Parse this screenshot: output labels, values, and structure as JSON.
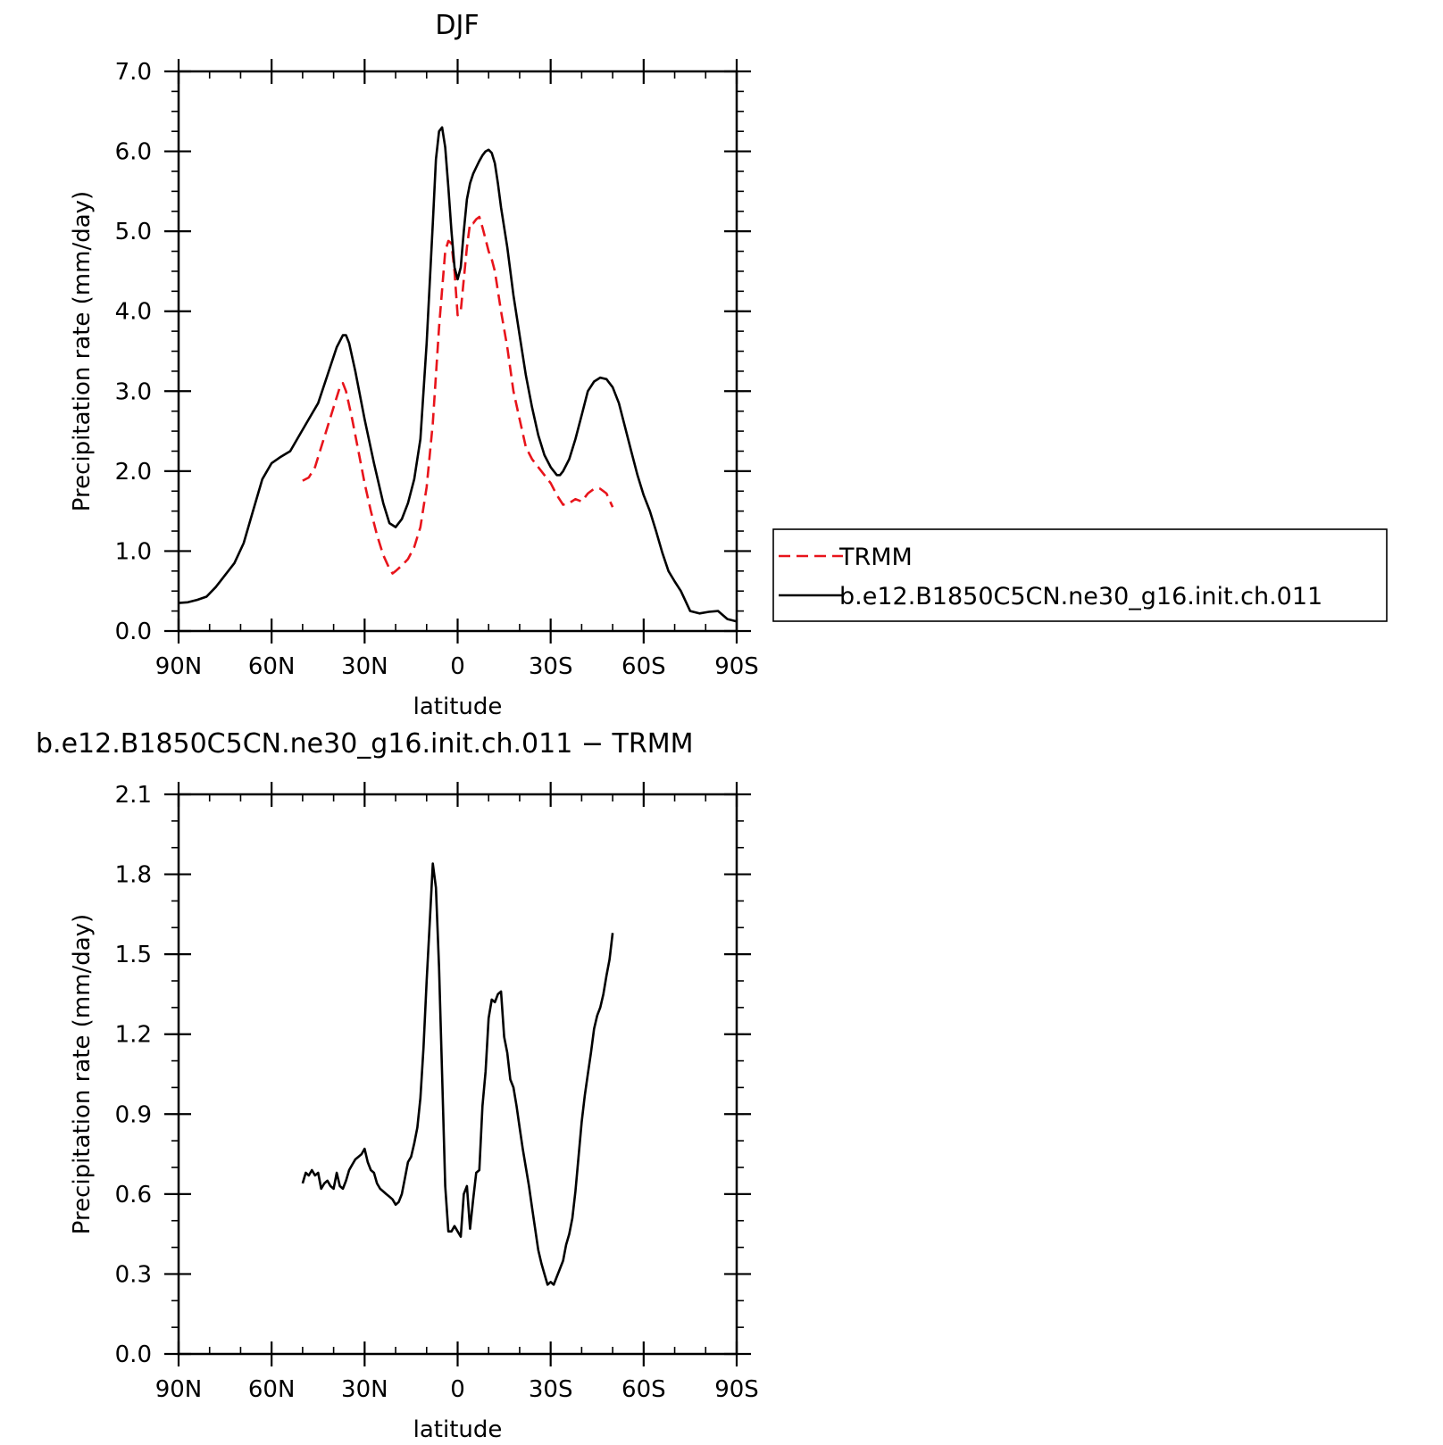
{
  "chart_data": [
    {
      "type": "line",
      "title": "DJF",
      "xlabel": "latitude",
      "ylabel": "Precipitation rate (mm/day)",
      "xlim": [
        90,
        -90
      ],
      "ylim": [
        0,
        7
      ],
      "x_ticks": [
        90,
        60,
        30,
        0,
        -30,
        -60,
        -90
      ],
      "x_tick_labels": [
        "90N",
        "60N",
        "30N",
        "0",
        "30S",
        "60S",
        "90S"
      ],
      "y_ticks": [
        0,
        1,
        2,
        3,
        4,
        5,
        6,
        7
      ],
      "y_tick_labels": [
        "0.0",
        "1.0",
        "2.0",
        "3.0",
        "4.0",
        "5.0",
        "6.0",
        "7.0"
      ],
      "legend": {
        "placement": "right",
        "entries": [
          "TRMM",
          "b.e12.B1850C5CN.ne30_g16.init.ch.011"
        ]
      },
      "series": [
        {
          "name": "TRMM",
          "color": "#e8141b",
          "dash": "dashed",
          "x": [
            50,
            48,
            46,
            44,
            42,
            40,
            38,
            37,
            36,
            34,
            32,
            30,
            28,
            26,
            24,
            22,
            21,
            20,
            18,
            16,
            14,
            12,
            10,
            8,
            6,
            4,
            3,
            2,
            1,
            0,
            -1,
            -2,
            -3,
            -4,
            -5,
            -6,
            -7,
            -8,
            -9,
            -10,
            -11,
            -12,
            -14,
            -16,
            -18,
            -20,
            -22,
            -24,
            -26,
            -28,
            -30,
            -32,
            -34,
            -36,
            -38,
            -40,
            -42,
            -44,
            -46,
            -48,
            -50
          ],
          "y": [
            1.88,
            1.92,
            2.05,
            2.3,
            2.55,
            2.8,
            3.05,
            3.1,
            3.0,
            2.65,
            2.25,
            1.85,
            1.5,
            1.2,
            0.95,
            0.78,
            0.72,
            0.75,
            0.82,
            0.9,
            1.05,
            1.3,
            1.8,
            2.6,
            3.8,
            4.75,
            4.88,
            4.85,
            4.5,
            3.95,
            4.0,
            4.4,
            4.8,
            5.1,
            5.1,
            5.15,
            5.18,
            5.05,
            4.9,
            4.75,
            4.65,
            4.5,
            4.0,
            3.55,
            3.0,
            2.65,
            2.3,
            2.15,
            2.05,
            1.95,
            1.85,
            1.7,
            1.58,
            1.6,
            1.65,
            1.62,
            1.72,
            1.78,
            1.78,
            1.72,
            1.55
          ]
        },
        {
          "name": "b.e12.B1850C5CN.ne30_g16.init.ch.011",
          "color": "#000000",
          "dash": "solid",
          "x": [
            90,
            87,
            84,
            81,
            78,
            75,
            72,
            69,
            66,
            63,
            60,
            57,
            54,
            51,
            48,
            45,
            42,
            39,
            37,
            36,
            35,
            33,
            30,
            27,
            24,
            22,
            20,
            18,
            16,
            14,
            12,
            10,
            8,
            7,
            6,
            5,
            4,
            3,
            2,
            1,
            0,
            -1,
            -2,
            -3,
            -4,
            -5,
            -6,
            -7,
            -8,
            -9,
            -10,
            -11,
            -12,
            -13,
            -14,
            -16,
            -18,
            -20,
            -22,
            -24,
            -26,
            -28,
            -30,
            -32,
            -33,
            -34,
            -36,
            -38,
            -40,
            -42,
            -44,
            -46,
            -48,
            -49,
            -50,
            -52,
            -54,
            -56,
            -58,
            -60,
            -62,
            -64,
            -66,
            -68,
            -70,
            -72,
            -75,
            -78,
            -81,
            -84,
            -87,
            -90
          ],
          "y": [
            0.35,
            0.36,
            0.39,
            0.43,
            0.55,
            0.7,
            0.85,
            1.1,
            1.5,
            1.9,
            2.1,
            2.18,
            2.25,
            2.45,
            2.65,
            2.85,
            3.2,
            3.55,
            3.7,
            3.7,
            3.6,
            3.25,
            2.65,
            2.1,
            1.6,
            1.35,
            1.3,
            1.4,
            1.6,
            1.9,
            2.4,
            3.6,
            5.1,
            5.9,
            6.25,
            6.3,
            6.05,
            5.55,
            5.0,
            4.55,
            4.4,
            4.55,
            5.0,
            5.4,
            5.6,
            5.72,
            5.8,
            5.88,
            5.95,
            6.0,
            6.02,
            5.98,
            5.85,
            5.6,
            5.3,
            4.8,
            4.2,
            3.7,
            3.2,
            2.8,
            2.45,
            2.2,
            2.05,
            1.95,
            1.95,
            2.0,
            2.15,
            2.4,
            2.7,
            3.0,
            3.12,
            3.17,
            3.15,
            3.1,
            3.05,
            2.85,
            2.55,
            2.25,
            1.95,
            1.7,
            1.5,
            1.25,
            0.98,
            0.75,
            0.62,
            0.5,
            0.25,
            0.22,
            0.24,
            0.25,
            0.15,
            0.12
          ]
        }
      ]
    },
    {
      "type": "line",
      "title": "b.e12.B1850C5CN.ne30_g16.init.ch.011  −  TRMM",
      "xlabel": "latitude",
      "ylabel": "Precipitation rate (mm/day)",
      "xlim": [
        90,
        -90
      ],
      "ylim": [
        0,
        2.1
      ],
      "x_ticks": [
        90,
        60,
        30,
        0,
        -30,
        -60,
        -90
      ],
      "x_tick_labels": [
        "90N",
        "60N",
        "30N",
        "0",
        "30S",
        "60S",
        "90S"
      ],
      "y_ticks": [
        0,
        0.3,
        0.6,
        0.9,
        1.2,
        1.5,
        1.8,
        2.1
      ],
      "y_tick_labels": [
        "0.0",
        "0.3",
        "0.6",
        "0.9",
        "1.2",
        "1.5",
        "1.8",
        "2.1"
      ],
      "series": [
        {
          "color": "#000000",
          "dash": "solid",
          "x": [
            50,
            49,
            48,
            47,
            46,
            45,
            44,
            43,
            42,
            41,
            40,
            39,
            38,
            37,
            36,
            35,
            34,
            33,
            32,
            31,
            30,
            29,
            28,
            27,
            26,
            25,
            24,
            23,
            22,
            21,
            20,
            19,
            18,
            17,
            16,
            15,
            14,
            13,
            12,
            11,
            10,
            9,
            8,
            7,
            6,
            5,
            4,
            3,
            2,
            1,
            0,
            -1,
            -2,
            -3,
            -4,
            -5,
            -6,
            -7,
            -8,
            -9,
            -10,
            -11,
            -12,
            -13,
            -14,
            -15,
            -16,
            -17,
            -18,
            -19,
            -20,
            -21,
            -22,
            -23,
            -24,
            -25,
            -26,
            -27,
            -28,
            -29,
            -30,
            -31,
            -32,
            -33,
            -34,
            -35,
            -36,
            -37,
            -38,
            -39,
            -40,
            -41,
            -42,
            -43,
            -44,
            -45,
            -46,
            -47,
            -48,
            -49,
            -50
          ],
          "y": [
            0.64,
            0.68,
            0.67,
            0.69,
            0.67,
            0.68,
            0.62,
            0.64,
            0.65,
            0.63,
            0.62,
            0.68,
            0.63,
            0.62,
            0.65,
            0.69,
            0.71,
            0.73,
            0.74,
            0.75,
            0.77,
            0.72,
            0.69,
            0.68,
            0.64,
            0.62,
            0.61,
            0.6,
            0.59,
            0.58,
            0.56,
            0.57,
            0.6,
            0.66,
            0.72,
            0.74,
            0.79,
            0.85,
            0.96,
            1.15,
            1.4,
            1.62,
            1.84,
            1.75,
            1.45,
            1.05,
            0.63,
            0.46,
            0.46,
            0.48,
            0.46,
            0.44,
            0.6,
            0.63,
            0.47,
            0.58,
            0.68,
            0.69,
            0.93,
            1.06,
            1.26,
            1.33,
            1.32,
            1.35,
            1.36,
            1.19,
            1.13,
            1.03,
            1.0,
            0.93,
            0.85,
            0.77,
            0.7,
            0.63,
            0.55,
            0.47,
            0.39,
            0.34,
            0.3,
            0.26,
            0.27,
            0.26,
            0.29,
            0.32,
            0.35,
            0.41,
            0.45,
            0.51,
            0.61,
            0.74,
            0.87,
            0.97,
            1.05,
            1.13,
            1.22,
            1.27,
            1.3,
            1.35,
            1.42,
            1.48,
            1.58
          ]
        }
      ]
    }
  ]
}
